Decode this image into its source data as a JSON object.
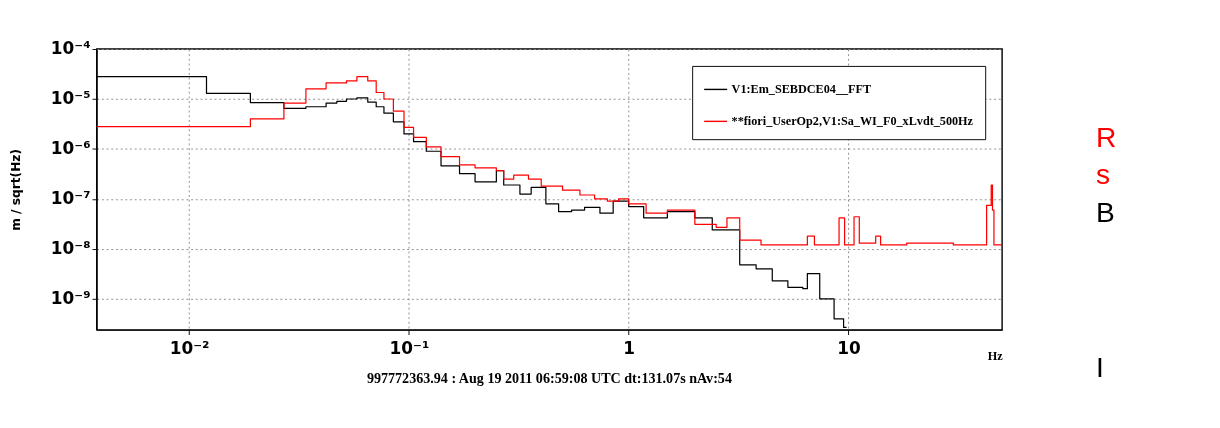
{
  "chart_data": {
    "type": "step",
    "xlabel": "Hz",
    "ylabel": "m / sqrt(Hz)",
    "annotations": [
      "997772363.94 : Aug 19 2011 06:59:08 UTC dt:131.07s nAv:54",
      "R",
      "s",
      "B",
      "I"
    ],
    "log": "xy",
    "grid": true,
    "legend": "top right",
    "xlim": [
      0.0038,
      50
    ],
    "ylim": [
      2.4e-10,
      0.0001
    ],
    "xticks": [
      {
        "value": 0.01,
        "label": "10⁻²"
      },
      {
        "value": 0.1,
        "label": "10⁻¹"
      },
      1,
      10
    ],
    "yticks": [
      {
        "value": 1e-09,
        "label": "10⁻⁹"
      },
      {
        "value": 1e-08,
        "label": "10⁻⁸"
      },
      {
        "value": 1e-07,
        "label": "10⁻⁷"
      },
      {
        "value": 1e-06,
        "label": "10⁻⁶"
      },
      {
        "value": 1e-05,
        "label": "10⁻⁵"
      },
      {
        "value": 0.0001,
        "label": "10⁻⁴"
      }
    ],
    "series": [
      {
        "name": "V1:Em_SEBDCE04__FFT",
        "color": "#000000",
        "x": [
          0.0038,
          0.012,
          0.019,
          0.027,
          0.034,
          0.042,
          0.047,
          0.052,
          0.058,
          0.065,
          0.071,
          0.077,
          0.085,
          0.095,
          0.105,
          0.12,
          0.14,
          0.17,
          0.2,
          0.25,
          0.27,
          0.32,
          0.36,
          0.42,
          0.48,
          0.55,
          0.63,
          0.74,
          0.85,
          1.0,
          1.17,
          1.5,
          2.0,
          2.4,
          2.84,
          3.2,
          3.8,
          4.5,
          5.3,
          6.2,
          6.5,
          7.4,
          8.6,
          9.5,
          9.8
        ],
        "values": [
          2.8e-05,
          1.3e-05,
          8.5e-06,
          6.5e-06,
          7e-06,
          8.3e-06,
          9e-06,
          1e-05,
          1.05e-05,
          8.7e-06,
          7e-06,
          5.2e-06,
          3.5e-06,
          2e-06,
          1.4e-06,
          9e-07,
          4.6e-07,
          3.2e-07,
          2.2e-07,
          3.7e-07,
          1.9e-07,
          1.25e-07,
          1.7e-07,
          8e-08,
          5.6e-08,
          6e-08,
          6.8e-08,
          5.2e-08,
          9e-08,
          7e-08,
          4.2e-08,
          5.6e-08,
          4.2e-08,
          2.4e-08,
          2.4e-08,
          4.8e-09,
          4e-09,
          2.3e-09,
          1.7e-09,
          1.6e-09,
          3.2e-09,
          1e-09,
          4e-10,
          2.7e-10,
          2.7e-10
        ]
      },
      {
        "name": "**fiori_UserOp2,V1:Sa_WI_F0_xLvdt_500Hz",
        "color": "#ff0000",
        "x": [
          0.0038,
          0.019,
          0.027,
          0.034,
          0.042,
          0.047,
          0.052,
          0.058,
          0.065,
          0.071,
          0.077,
          0.085,
          0.095,
          0.105,
          0.12,
          0.14,
          0.17,
          0.2,
          0.25,
          0.27,
          0.3,
          0.35,
          0.4,
          0.5,
          0.6,
          0.7,
          0.8,
          0.9,
          1.0,
          1.2,
          1.5,
          2.0,
          2.5,
          2.8,
          3.2,
          4.0,
          6.0,
          6.5,
          7.0,
          8.5,
          9.06,
          9.6,
          10.6,
          11.2,
          13.3,
          14,
          18.4,
          30,
          39.6,
          42.5,
          44.6,
          45.2,
          45.9,
          50
        ],
        "values": [
          2.8e-06,
          4e-06,
          8.3e-06,
          1.6e-05,
          2.1e-05,
          2.1e-05,
          2.3e-05,
          2.8e-05,
          2.3e-05,
          1.35e-05,
          1e-05,
          5.7e-06,
          2.7e-06,
          1.7e-06,
          1.1e-06,
          7e-07,
          4.8e-07,
          4.2e-07,
          3.7e-07,
          2.5e-07,
          3e-07,
          2.5e-07,
          1.8e-07,
          1.5e-07,
          1.2e-07,
          1e-07,
          9e-08,
          1e-07,
          8e-08,
          5.2e-08,
          6e-08,
          3.1e-08,
          2.7e-08,
          4.2e-08,
          1.5e-08,
          1.2e-08,
          1.2e-08,
          1.8e-08,
          1.2e-08,
          1.2e-08,
          4.2e-08,
          1.2e-08,
          4.4e-08,
          1.3e-08,
          1.8e-08,
          1.2e-08,
          1.3e-08,
          1.2e-08,
          1.2e-08,
          7.4e-08,
          1.9e-07,
          6e-08,
          1.2e-08,
          1.2e-08
        ]
      }
    ]
  }
}
